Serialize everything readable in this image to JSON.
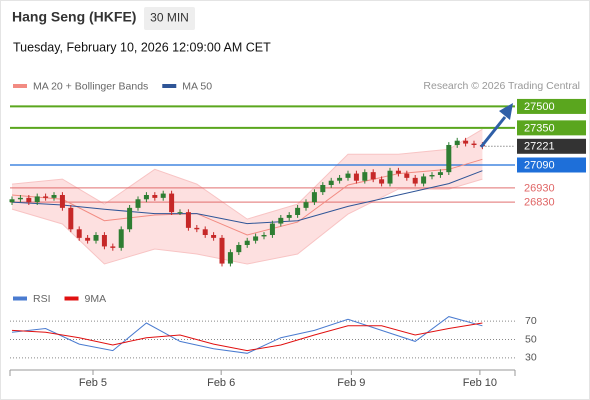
{
  "header": {
    "title": "Hang Seng (HKFE)",
    "interval": "30 MIN",
    "datetime": "Tuesday, February 10, 2026 12:09:00 AM CET",
    "credit": "Research © 2026 Trading Central"
  },
  "chart_data": [
    {
      "type": "candlestick",
      "up_color": "#2e7d32",
      "down_color": "#c62828",
      "open": [
        26830,
        26850,
        26860,
        26830,
        26870,
        26860,
        26880,
        26790,
        26640,
        26580,
        26560,
        26600,
        26520,
        26510,
        26640,
        26790,
        26850,
        26880,
        26860,
        26890,
        26760,
        26760,
        26650,
        26640,
        26600,
        26580,
        26400,
        26480,
        26530,
        26560,
        26590,
        26600,
        26680,
        26720,
        26740,
        26790,
        26830,
        26900,
        26950,
        26980,
        27000,
        27030,
        26980,
        27040,
        26990,
        26960,
        27050,
        27030,
        27000,
        26960,
        27010,
        27020,
        27040,
        27230,
        27260,
        27240,
        27230
      ],
      "high": [
        26870,
        26880,
        26880,
        26890,
        26890,
        26900,
        26900,
        26810,
        26660,
        26600,
        26620,
        26620,
        26540,
        26660,
        26810,
        26870,
        26900,
        26900,
        26910,
        26910,
        26780,
        26780,
        26670,
        26660,
        26620,
        26600,
        26500,
        26550,
        26580,
        26610,
        26620,
        26700,
        26740,
        26760,
        26810,
        26850,
        26920,
        26970,
        27000,
        27020,
        27050,
        27050,
        27060,
        27060,
        27010,
        27070,
        27070,
        27050,
        27020,
        27030,
        27040,
        27060,
        27250,
        27280,
        27280,
        27260,
        27250
      ],
      "low": [
        26810,
        26830,
        26810,
        26810,
        26840,
        26840,
        26770,
        26620,
        26560,
        26540,
        26540,
        26500,
        26490,
        26490,
        26620,
        26770,
        26830,
        26840,
        26840,
        26740,
        26740,
        26630,
        26620,
        26580,
        26560,
        26380,
        26380,
        26460,
        26510,
        26540,
        26570,
        26580,
        26660,
        26700,
        26720,
        26770,
        26810,
        26880,
        26930,
        26960,
        26980,
        26960,
        26960,
        26970,
        26940,
        26940,
        27010,
        26980,
        26940,
        26940,
        26990,
        27000,
        27020,
        27210,
        27220,
        27210,
        27201
      ],
      "close": [
        26850,
        26860,
        26830,
        26870,
        26860,
        26880,
        26790,
        26640,
        26580,
        26560,
        26600,
        26520,
        26510,
        26640,
        26790,
        26850,
        26880,
        26860,
        26890,
        26760,
        26760,
        26650,
        26640,
        26600,
        26580,
        26400,
        26480,
        26530,
        26560,
        26590,
        26600,
        26680,
        26720,
        26740,
        26790,
        26830,
        26900,
        26950,
        26980,
        27000,
        27030,
        26980,
        27040,
        26990,
        26960,
        27050,
        27030,
        27000,
        26960,
        27010,
        27020,
        27040,
        27230,
        27260,
        27240,
        27230,
        27221
      ],
      "indicators": {
        "x": [
          0,
          6,
          11,
          17,
          22,
          28,
          34,
          40,
          46,
          52,
          56
        ],
        "series": [
          {
            "name": "MA 20 + Bollinger Bands",
            "color": "#f28b82",
            "values": [
              26880,
              26850,
              26700,
              26740,
              26750,
              26600,
              26690,
              26950,
              27030,
              27060,
              27130
            ]
          },
          {
            "name": "MA 50",
            "color": "#2f5597",
            "values": [
              26830,
              26810,
              26780,
              26750,
              26750,
              26680,
              26700,
              26800,
              26880,
              26960,
              27050
            ]
          }
        ],
        "bands": {
          "color": "#fde0e0",
          "upper": [
            26956,
            26991,
            26816,
            27060,
            26956,
            26711,
            26816,
            27165,
            27165,
            27200,
            27340
          ],
          "lower": [
            26781,
            26677,
            26397,
            26502,
            26467,
            26397,
            26467,
            26746,
            26921,
            26921,
            26991
          ]
        }
      },
      "levels": [
        {
          "value": 27500,
          "color": "#5aa61e",
          "style": "box"
        },
        {
          "value": 27350,
          "color": "#5aa61e",
          "style": "box"
        },
        {
          "value": 27221,
          "color": "#333333",
          "style": "current"
        },
        {
          "value": 27090,
          "color": "#1e6fd9",
          "style": "box"
        },
        {
          "value": 26930,
          "color": "#e06666",
          "style": "text"
        },
        {
          "value": 26830,
          "color": "#e06666",
          "style": "text"
        }
      ],
      "xlim": [
        -0.24,
        59.88
      ],
      "ylim": [
        26250,
        27580
      ],
      "xticks": [
        {
          "value": 9.64,
          "label": "Feb 5"
        },
        {
          "value": 24.9,
          "label": "Feb 6"
        },
        {
          "value": 40.4,
          "label": "Feb 9"
        },
        {
          "value": 55.7,
          "label": "Feb 10"
        }
      ]
    },
    {
      "type": "line",
      "x": [
        0,
        4,
        8,
        12,
        16,
        20,
        24,
        28,
        32,
        36,
        40,
        44,
        48,
        52,
        56
      ],
      "series": [
        {
          "name": "RSI",
          "color": "#4a7bd0",
          "values": [
            58,
            62,
            45,
            38,
            68,
            48,
            40,
            35,
            52,
            60,
            72,
            60,
            48,
            75,
            65
          ]
        },
        {
          "name": "9MA",
          "color": "#e01010",
          "values": [
            60,
            58,
            52,
            44,
            52,
            55,
            45,
            38,
            44,
            55,
            65,
            65,
            55,
            62,
            68
          ]
        }
      ],
      "xlim": [
        -0.24,
        59.88
      ],
      "ylim": [
        19,
        80
      ],
      "yticks": [
        30,
        50,
        70
      ]
    }
  ]
}
